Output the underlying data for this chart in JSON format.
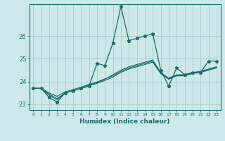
{
  "xlabel": "Humidex (Indice chaleur)",
  "ylabel": "",
  "bg_color": "#cce8e8",
  "grid_color": "#aacccc",
  "line_color": "#1a6b6b",
  "xlim": [
    -0.5,
    23.5
  ],
  "ylim": [
    22.75,
    27.4
  ],
  "yticks": [
    23,
    24,
    25,
    26
  ],
  "xticks": [
    0,
    1,
    2,
    3,
    4,
    5,
    6,
    7,
    8,
    9,
    10,
    11,
    12,
    13,
    14,
    15,
    16,
    17,
    18,
    19,
    20,
    21,
    22,
    23
  ],
  "series": [
    [
      23.7,
      23.7,
      23.3,
      23.1,
      23.5,
      23.6,
      23.7,
      23.8,
      24.8,
      24.7,
      25.7,
      27.3,
      25.8,
      25.9,
      26.0,
      26.1,
      24.5,
      23.8,
      24.6,
      24.3,
      24.4,
      24.4,
      24.9,
      24.9
    ],
    [
      23.7,
      23.7,
      23.4,
      23.2,
      23.5,
      23.6,
      23.7,
      23.85,
      23.95,
      24.1,
      24.3,
      24.5,
      24.65,
      24.75,
      24.85,
      24.95,
      24.4,
      24.15,
      24.3,
      24.3,
      24.4,
      24.45,
      24.55,
      24.65
    ],
    [
      23.7,
      23.7,
      23.45,
      23.25,
      23.5,
      23.6,
      23.7,
      23.82,
      23.92,
      24.05,
      24.2,
      24.4,
      24.55,
      24.65,
      24.75,
      24.85,
      24.35,
      24.1,
      24.25,
      24.25,
      24.35,
      24.4,
      24.5,
      24.6
    ],
    [
      23.7,
      23.7,
      23.5,
      23.35,
      23.55,
      23.65,
      23.75,
      23.88,
      23.98,
      24.12,
      24.25,
      24.45,
      24.6,
      24.7,
      24.8,
      24.9,
      24.38,
      24.12,
      24.28,
      24.28,
      24.38,
      24.43,
      24.53,
      24.63
    ]
  ]
}
